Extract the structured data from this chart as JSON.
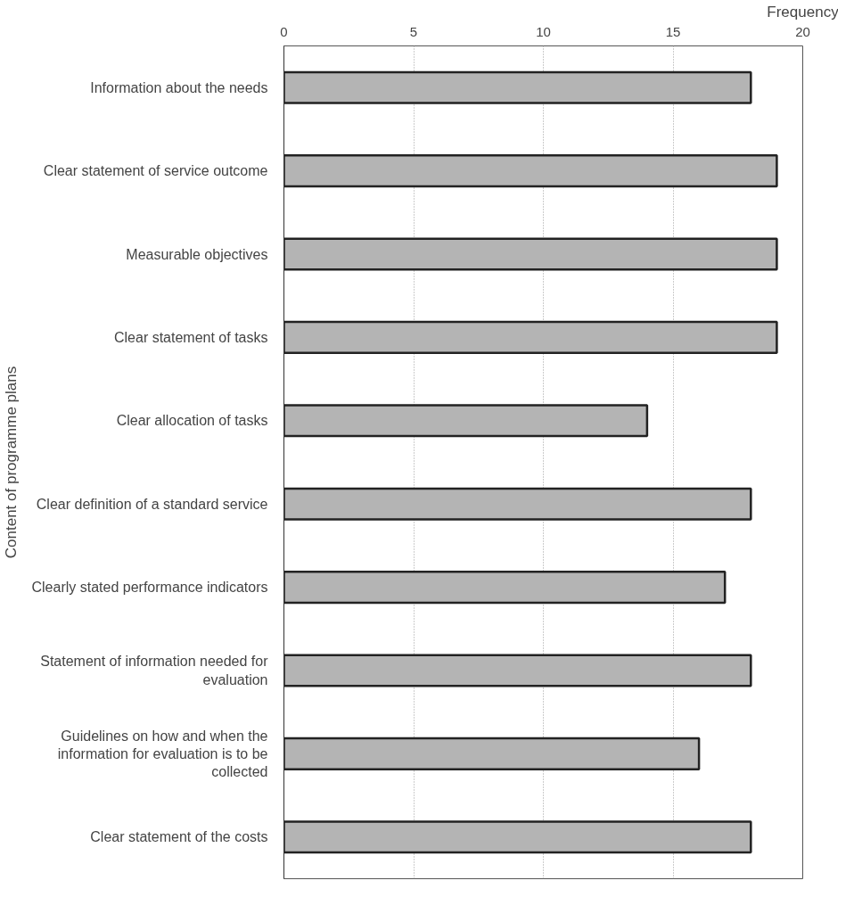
{
  "chart_data": {
    "type": "bar",
    "orientation": "horizontal",
    "xlabel": "Frequency",
    "ylabel": "Content of programme plans",
    "categories": [
      "Information about the needs",
      "Clear statement of service outcome",
      "Measurable objectives",
      "Clear statement of tasks",
      "Clear allocation of tasks",
      "Clear definition of a standard service",
      "Clearly stated performance indicators",
      "Statement of information needed for evaluation",
      "Guidelines on how and when the information for evaluation is to be collected",
      "Clear statement of the costs"
    ],
    "values": [
      18,
      19,
      19,
      19,
      14,
      18,
      17,
      18,
      16,
      18
    ],
    "color": "#b4b4b4",
    "xlim": [
      0,
      20
    ],
    "xticks": [
      0,
      5,
      10,
      15,
      20
    ],
    "grid": "x"
  }
}
